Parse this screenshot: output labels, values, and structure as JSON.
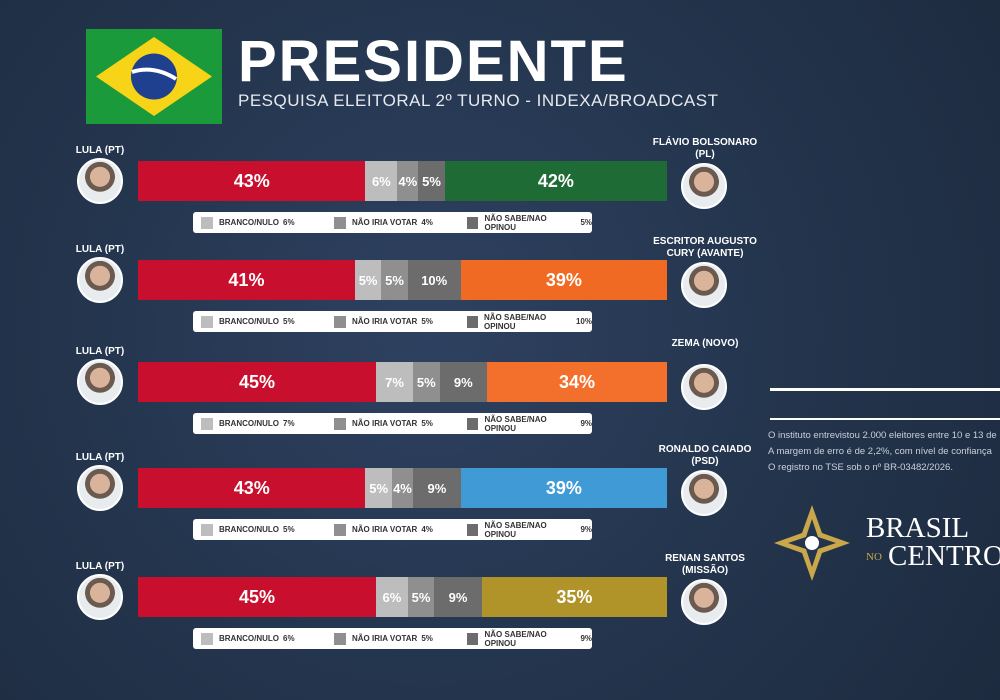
{
  "header": {
    "title": "PRESIDENTE",
    "subtitle": "PESQUISA ELEITORAL 2º TURNO - INDEXA/BROADCAST"
  },
  "chart_data": [
    {
      "type": "stacked-bar",
      "series": [
        {
          "name": "LULA (PT)",
          "color": "#c8102e",
          "values": [
            43
          ],
          "value_labels": [
            "43%"
          ]
        },
        {
          "name": "BRANCO/NULO",
          "color": "#bdbdbd",
          "values": [
            6
          ],
          "value_labels": [
            "6%"
          ]
        },
        {
          "name": "NÃO IRIA VOTAR",
          "color": "#8f8f8f",
          "values": [
            4
          ],
          "value_labels": [
            "4%"
          ]
        },
        {
          "name": "NÃO SABE/NAO OPINOU",
          "color": "#6c6c6c",
          "values": [
            5
          ],
          "value_labels": [
            "5%"
          ]
        },
        {
          "name": "FLÁVIO BOLSONARO (PL)",
          "color": "#1f6b35",
          "values": [
            42
          ],
          "value_labels": [
            "42%"
          ]
        }
      ]
    },
    {
      "type": "stacked-bar",
      "series": [
        {
          "name": "LULA (PT)",
          "color": "#c8102e",
          "values": [
            41
          ],
          "value_labels": [
            "41%"
          ]
        },
        {
          "name": "BRANCO/NULO",
          "color": "#bdbdbd",
          "values": [
            5
          ],
          "value_labels": [
            "5%"
          ]
        },
        {
          "name": "NÃO IRIA VOTAR",
          "color": "#8f8f8f",
          "values": [
            5
          ],
          "value_labels": [
            "5%"
          ]
        },
        {
          "name": "NÃO SABE/NAO OPINOU",
          "color": "#6c6c6c",
          "values": [
            10
          ],
          "value_labels": [
            "10%"
          ]
        },
        {
          "name": "ESCRITOR AUGUSTO CURY (AVANTE)",
          "color": "#f06a24",
          "values": [
            39
          ],
          "value_labels": [
            "39%"
          ]
        }
      ]
    },
    {
      "type": "stacked-bar",
      "series": [
        {
          "name": "LULA (PT)",
          "color": "#c8102e",
          "values": [
            45
          ],
          "value_labels": [
            "45%"
          ]
        },
        {
          "name": "BRANCO/NULO",
          "color": "#bdbdbd",
          "values": [
            7
          ],
          "value_labels": [
            "7%"
          ]
        },
        {
          "name": "NÃO IRIA VOTAR",
          "color": "#8f8f8f",
          "values": [
            5
          ],
          "value_labels": [
            "5%"
          ]
        },
        {
          "name": "NÃO SABE/NAO OPINOU",
          "color": "#6c6c6c",
          "values": [
            9
          ],
          "value_labels": [
            "9%"
          ]
        },
        {
          "name": "ZEMA (NOVO)",
          "color": "#f36f2c",
          "values": [
            34
          ],
          "value_labels": [
            "34%"
          ]
        }
      ]
    },
    {
      "type": "stacked-bar",
      "series": [
        {
          "name": "LULA (PT)",
          "color": "#c8102e",
          "values": [
            43
          ],
          "value_labels": [
            "43%"
          ]
        },
        {
          "name": "BRANCO/NULO",
          "color": "#bdbdbd",
          "values": [
            5
          ],
          "value_labels": [
            "5%"
          ]
        },
        {
          "name": "NÃO IRIA VOTAR",
          "color": "#8f8f8f",
          "values": [
            4
          ],
          "value_labels": [
            "4%"
          ]
        },
        {
          "name": "NÃO SABE/NAO OPINOU",
          "color": "#6c6c6c",
          "values": [
            9
          ],
          "value_labels": [
            "9%"
          ]
        },
        {
          "name": "RONALDO CAIADO (PSD)",
          "color": "#3f9ad6",
          "values": [
            39
          ],
          "value_labels": [
            "39%"
          ]
        }
      ]
    },
    {
      "type": "stacked-bar",
      "series": [
        {
          "name": "LULA (PT)",
          "color": "#c8102e",
          "values": [
            45
          ],
          "value_labels": [
            "45%"
          ]
        },
        {
          "name": "BRANCO/NULO",
          "color": "#bdbdbd",
          "values": [
            6
          ],
          "value_labels": [
            "6%"
          ]
        },
        {
          "name": "NÃO IRIA VOTAR",
          "color": "#8f8f8f",
          "values": [
            5
          ],
          "value_labels": [
            "5%"
          ]
        },
        {
          "name": "NÃO SABE/NAO OPINOU",
          "color": "#6c6c6c",
          "values": [
            9
          ],
          "value_labels": [
            "9%"
          ]
        },
        {
          "name": "RENAN SANTOS (MISSÃO)",
          "color": "#b0942a",
          "values": [
            35
          ],
          "value_labels": [
            "35%"
          ]
        }
      ]
    }
  ],
  "note": [
    "O instituto entrevistou 2.000 eleitores entre 10 e 13 de",
    "A margem de erro é de 2,2%, com nível de confiança",
    "O registro no TSE sob o nº BR-03482/2026."
  ],
  "brand": {
    "line1": "BRASIL",
    "small": "NO",
    "line2": "CENTRO"
  }
}
